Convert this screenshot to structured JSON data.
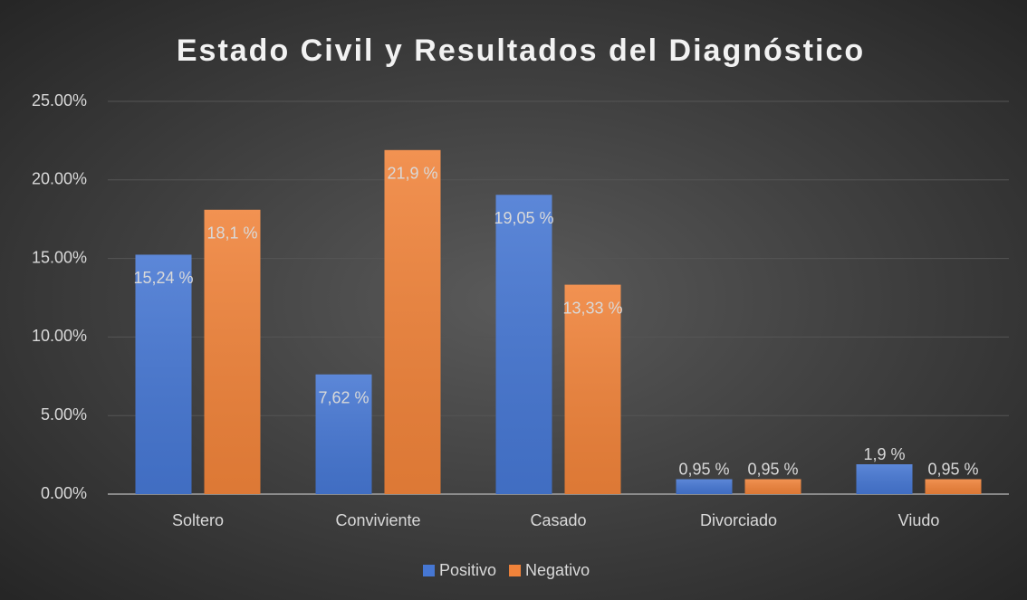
{
  "chart_data": {
    "type": "bar",
    "title": "Estado Civil y Resultados del Diagnóstico",
    "categories": [
      "Soltero",
      "Conviviente",
      "Casado",
      "Divorciado",
      "Viudo"
    ],
    "series": [
      {
        "name": "Positivo",
        "color": "#4677d3",
        "values": [
          15.24,
          7.62,
          19.05,
          0.95,
          1.9
        ],
        "value_labels": [
          "15,24 %",
          "7,62 %",
          "19,05 %",
          "0,95 %",
          "1,9 %"
        ]
      },
      {
        "name": "Negativo",
        "color": "#f0833a",
        "values": [
          18.1,
          21.9,
          13.33,
          0.95,
          0.95
        ],
        "value_labels": [
          "18,1 %",
          "21,9 %",
          "13,33 %",
          "0,95 %",
          "0,95 %"
        ]
      }
    ],
    "ylim": [
      0,
      25
    ],
    "yticks": [
      {
        "value": 0,
        "label": "0.00%"
      },
      {
        "value": 5,
        "label": "5.00%"
      },
      {
        "value": 10,
        "label": "10.00%"
      },
      {
        "value": 15,
        "label": "15.00%"
      },
      {
        "value": 20,
        "label": "20.00%"
      },
      {
        "value": 25,
        "label": "25.00%"
      }
    ],
    "grid": true,
    "legend": "bottom"
  }
}
